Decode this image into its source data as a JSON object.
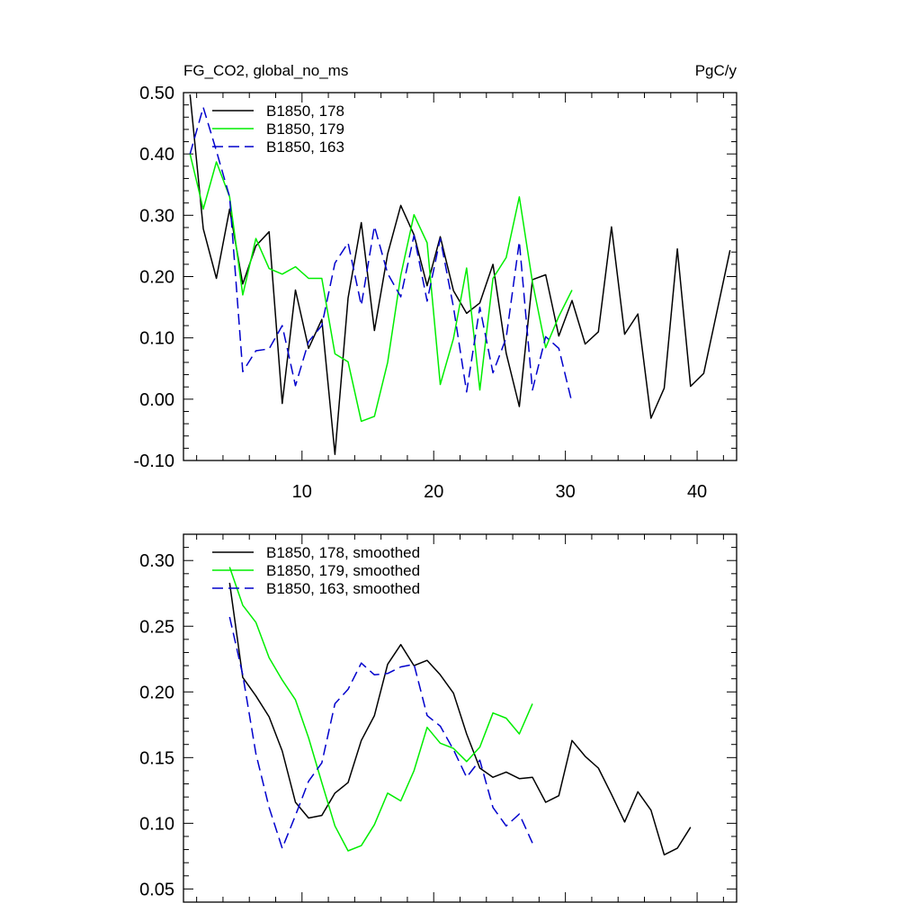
{
  "chart_data": [
    {
      "type": "line",
      "title": "FG_CO2, global_no_ms",
      "units": "PgC/y",
      "xlim": [
        1,
        43
      ],
      "ylim": [
        -0.1,
        0.5
      ],
      "xticks": [
        10,
        20,
        30,
        40
      ],
      "xtick_labels": [
        "10",
        "20",
        "30",
        "40"
      ],
      "yticks": [
        -0.1,
        0.0,
        0.1,
        0.2,
        0.3,
        0.4,
        0.5
      ],
      "ytick_labels": [
        "-0.10",
        "0.00",
        "0.10",
        "0.20",
        "0.30",
        "0.40",
        "0.50"
      ],
      "series": [
        {
          "name": "B1850, 178",
          "color": "#000000",
          "dash": "solid",
          "x": [
            1.5,
            2.5,
            3.5,
            4.5,
            5.5,
            6.5,
            7.5,
            8.5,
            9.5,
            10.5,
            11.5,
            12.5,
            13.5,
            14.5,
            15.5,
            16.5,
            17.5,
            18.5,
            19.5,
            20.5,
            21.5,
            22.5,
            23.5,
            24.5,
            25.5,
            26.5,
            27.5,
            28.5,
            29.5,
            30.5,
            31.5,
            32.5,
            33.5,
            34.5,
            35.5,
            36.5,
            37.5,
            38.5,
            39.5,
            40.5,
            41.5,
            42.5
          ],
          "y": [
            0.497,
            0.278,
            0.197,
            0.31,
            0.188,
            0.25,
            0.273,
            -0.007,
            0.178,
            0.083,
            0.13,
            -0.09,
            0.165,
            0.288,
            0.112,
            0.237,
            0.316,
            0.268,
            0.185,
            0.265,
            0.177,
            0.14,
            0.157,
            0.22,
            0.075,
            -0.012,
            0.195,
            0.203,
            0.103,
            0.161,
            0.09,
            0.11,
            0.281,
            0.106,
            0.139,
            -0.031,
            0.018,
            0.245,
            0.021,
            0.042,
            0.142,
            0.243
          ]
        },
        {
          "name": "B1850, 179",
          "color": "#00ee00",
          "dash": "solid",
          "x": [
            1.5,
            2.5,
            3.5,
            4.5,
            5.5,
            6.5,
            7.5,
            8.5,
            9.5,
            10.5,
            11.5,
            12.5,
            13.5,
            14.5,
            15.5,
            16.5,
            17.5,
            18.5,
            19.5,
            20.5,
            21.5,
            22.5,
            23.5,
            24.5,
            25.5,
            26.5,
            27.5,
            28.5,
            29.5,
            30.5
          ],
          "y": [
            0.4,
            0.31,
            0.387,
            0.33,
            0.17,
            0.262,
            0.213,
            0.204,
            0.216,
            0.197,
            0.197,
            0.074,
            0.061,
            -0.036,
            -0.028,
            0.06,
            0.202,
            0.301,
            0.255,
            0.024,
            0.099,
            0.214,
            0.015,
            0.197,
            0.231,
            0.33,
            0.191,
            0.084,
            0.135,
            0.178
          ]
        },
        {
          "name": "B1850, 163",
          "color": "#0000cc",
          "dash": "dashed",
          "x": [
            1.5,
            2.5,
            3.5,
            4.5,
            5.5,
            6.5,
            7.5,
            8.5,
            9.5,
            10.5,
            11.5,
            12.5,
            13.5,
            14.5,
            15.5,
            16.5,
            17.5,
            18.5,
            19.5,
            20.5,
            21.5,
            22.5,
            23.5,
            24.5,
            25.5,
            26.5,
            27.5,
            28.5,
            29.5,
            30.5
          ],
          "y": [
            0.4,
            0.476,
            0.405,
            0.33,
            0.045,
            0.079,
            0.082,
            0.12,
            0.022,
            0.094,
            0.12,
            0.222,
            0.255,
            0.153,
            0.282,
            0.205,
            0.167,
            0.267,
            0.16,
            0.262,
            0.15,
            0.012,
            0.15,
            0.043,
            0.1,
            0.257,
            0.015,
            0.102,
            0.083,
            -0.006
          ]
        }
      ],
      "legend_location": "top-left"
    },
    {
      "type": "line",
      "title": "",
      "xlim": [
        1,
        43
      ],
      "ylim": [
        0.04,
        0.32
      ],
      "yticks": [
        0.05,
        0.1,
        0.15,
        0.2,
        0.25,
        0.3
      ],
      "ytick_labels": [
        "0.05",
        "0.10",
        "0.15",
        "0.20",
        "0.25",
        "0.30"
      ],
      "series": [
        {
          "name": "B1850, 178, smoothed",
          "color": "#000000",
          "dash": "solid",
          "x": [
            4.5,
            5.5,
            6.5,
            7.5,
            8.5,
            9.5,
            10.5,
            11.5,
            12.5,
            13.5,
            14.5,
            15.5,
            16.5,
            17.5,
            18.5,
            19.5,
            20.5,
            21.5,
            22.5,
            23.5,
            24.5,
            25.5,
            26.5,
            27.5,
            28.5,
            29.5,
            30.5,
            31.5,
            32.5,
            33.5,
            34.5,
            35.5,
            36.5,
            37.5,
            38.5,
            39.5
          ],
          "y": [
            0.283,
            0.211,
            0.197,
            0.181,
            0.155,
            0.116,
            0.104,
            0.106,
            0.123,
            0.131,
            0.163,
            0.182,
            0.221,
            0.236,
            0.22,
            0.224,
            0.213,
            0.199,
            0.168,
            0.142,
            0.135,
            0.139,
            0.134,
            0.135,
            0.116,
            0.121,
            0.163,
            0.151,
            0.142,
            0.122,
            0.101,
            0.124,
            0.11,
            0.076,
            0.081,
            0.097
          ]
        },
        {
          "name": "B1850, 179, smoothed",
          "color": "#00ee00",
          "dash": "solid",
          "x": [
            4.5,
            5.5,
            6.5,
            7.5,
            8.5,
            9.5,
            10.5,
            11.5,
            12.5,
            13.5,
            14.5,
            15.5,
            16.5,
            17.5,
            18.5,
            19.5,
            20.5,
            21.5,
            22.5,
            23.5,
            24.5,
            25.5,
            26.5,
            27.5
          ],
          "y": [
            0.295,
            0.266,
            0.253,
            0.226,
            0.209,
            0.194,
            0.165,
            0.131,
            0.098,
            0.079,
            0.083,
            0.099,
            0.123,
            0.117,
            0.14,
            0.173,
            0.161,
            0.157,
            0.147,
            0.158,
            0.184,
            0.18,
            0.168,
            0.191
          ]
        },
        {
          "name": "B1850, 163, smoothed",
          "color": "#0000cc",
          "dash": "dashed",
          "x": [
            4.5,
            5.5,
            6.5,
            7.5,
            8.5,
            9.5,
            10.5,
            11.5,
            12.5,
            13.5,
            14.5,
            15.5,
            16.5,
            17.5,
            18.5,
            19.5,
            20.5,
            21.5,
            22.5,
            23.5,
            24.5,
            25.5,
            26.5,
            27.5
          ],
          "y": [
            0.257,
            0.213,
            0.153,
            0.112,
            0.081,
            0.106,
            0.132,
            0.146,
            0.191,
            0.202,
            0.222,
            0.213,
            0.214,
            0.219,
            0.221,
            0.182,
            0.174,
            0.156,
            0.135,
            0.148,
            0.112,
            0.098,
            0.107,
            0.085
          ]
        }
      ],
      "legend_location": "top-left"
    }
  ]
}
